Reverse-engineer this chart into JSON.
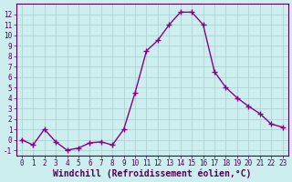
{
  "x": [
    0,
    1,
    2,
    3,
    4,
    5,
    6,
    7,
    8,
    9,
    10,
    11,
    12,
    13,
    14,
    15,
    16,
    17,
    18,
    19,
    20,
    21,
    22,
    23
  ],
  "y": [
    0,
    -0.5,
    1,
    -0.2,
    -1,
    -0.8,
    -0.3,
    -0.2,
    -0.5,
    1,
    4.5,
    8.5,
    9.5,
    11,
    12.2,
    12.2,
    11,
    6.5,
    5,
    4,
    3.2,
    2.5,
    1.5,
    1.2
  ],
  "line_color": "#880088",
  "marker": "+",
  "marker_size": 4,
  "bg_color": "#cceeee",
  "grid_color": "#aacccc",
  "xlabel": "Windchill (Refroidissement éolien,°C)",
  "xlabel_color": "#550055",
  "xlim": [
    -0.5,
    23.5
  ],
  "ylim": [
    -1.5,
    13
  ],
  "yticks": [
    -1,
    0,
    1,
    2,
    3,
    4,
    5,
    6,
    7,
    8,
    9,
    10,
    11,
    12
  ],
  "xticks": [
    0,
    1,
    2,
    3,
    4,
    5,
    6,
    7,
    8,
    9,
    10,
    11,
    12,
    13,
    14,
    15,
    16,
    17,
    18,
    19,
    20,
    21,
    22,
    23
  ],
  "tick_color": "#550055",
  "tick_fontsize": 5.5,
  "xlabel_fontsize": 7.0,
  "spine_color": "#550055",
  "linewidth": 1.0,
  "markeredgewidth": 1.0
}
